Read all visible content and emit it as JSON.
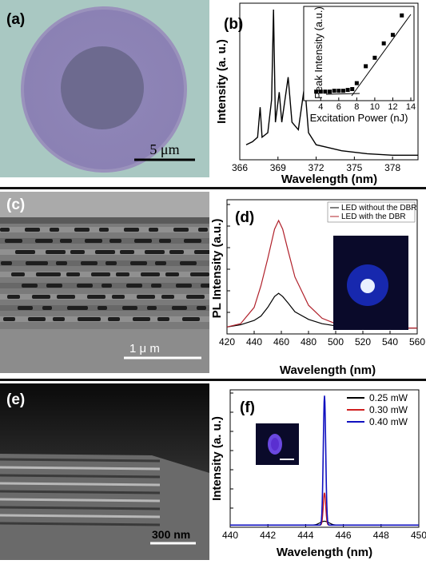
{
  "panels": {
    "a": {
      "label": "(a)",
      "scale_bar": "5 μm"
    },
    "b": {
      "label": "(b)"
    },
    "c": {
      "label": "(c)",
      "scale_bar": "1 μ m"
    },
    "d": {
      "label": "(d)"
    },
    "e": {
      "label": "(e)",
      "scale_bar": "300 nm"
    },
    "f": {
      "label": "(f)"
    }
  },
  "chart_data": [
    {
      "id": "b",
      "type": "line",
      "xlabel": "Wavelength (nm)",
      "ylabel": "Intensity (a. u.)",
      "xlim": [
        366,
        380
      ],
      "xticks": [
        366,
        369,
        372,
        375,
        378
      ],
      "series": [
        {
          "values": [
            [
              366.5,
              0.1
            ],
            [
              367,
              0.12
            ],
            [
              367.4,
              0.15
            ],
            [
              367.6,
              0.35
            ],
            [
              367.75,
              0.15
            ],
            [
              368.2,
              0.18
            ],
            [
              368.5,
              0.4
            ],
            [
              368.65,
              1.0
            ],
            [
              368.8,
              0.25
            ],
            [
              369.1,
              0.45
            ],
            [
              369.3,
              0.25
            ],
            [
              369.8,
              0.55
            ],
            [
              370.1,
              0.25
            ],
            [
              370.6,
              0.2
            ],
            [
              371.1,
              0.5
            ],
            [
              371.4,
              0.18
            ],
            [
              372,
              0.1
            ],
            [
              373,
              0.08
            ],
            [
              374,
              0.06
            ],
            [
              375,
              0.05
            ],
            [
              376,
              0.04
            ],
            [
              378,
              0.03
            ],
            [
              380,
              0.03
            ]
          ]
        }
      ],
      "inset": {
        "type": "scatter",
        "xlabel": "Excitation Power (nJ)",
        "ylabel": "Peak Intensity (a.u.)",
        "xticks": [
          4,
          6,
          8,
          10,
          12,
          14
        ],
        "x": [
          3.5,
          4,
          4.5,
          5,
          5.5,
          6,
          6.5,
          7,
          7.5,
          8,
          9,
          10,
          11,
          12,
          13
        ],
        "y": [
          0.05,
          0.05,
          0.05,
          0.05,
          0.06,
          0.06,
          0.06,
          0.07,
          0.08,
          0.15,
          0.35,
          0.45,
          0.62,
          0.72,
          0.95
        ]
      }
    },
    {
      "id": "d",
      "type": "line",
      "xlabel": "Wavelength (nm)",
      "ylabel": "PL Intensity (a.u.)",
      "xlim": [
        420,
        560
      ],
      "xticks": [
        420,
        440,
        460,
        480,
        500,
        520,
        540,
        560
      ],
      "legend": [
        "LED without the DBR",
        "LED with the DBR"
      ],
      "series": [
        {
          "name": "LED without the DBR",
          "color": "#000000",
          "x": [
            420,
            430,
            440,
            445,
            450,
            455,
            458,
            461,
            465,
            470,
            480,
            490,
            500,
            510,
            520,
            540,
            560
          ],
          "y": [
            0.02,
            0.04,
            0.08,
            0.12,
            0.2,
            0.3,
            0.33,
            0.3,
            0.24,
            0.16,
            0.09,
            0.05,
            0.03,
            0.02,
            0.01,
            0.01,
            0.01
          ]
        },
        {
          "name": "LED with the DBR",
          "color": "#b0202a",
          "x": [
            420,
            430,
            440,
            445,
            450,
            455,
            458,
            461,
            465,
            470,
            480,
            490,
            500,
            510,
            520,
            540,
            560
          ],
          "y": [
            0.02,
            0.05,
            0.2,
            0.4,
            0.65,
            0.92,
            1.0,
            0.92,
            0.72,
            0.48,
            0.22,
            0.1,
            0.05,
            0.03,
            0.02,
            0.01,
            0.01
          ]
        }
      ]
    },
    {
      "id": "f",
      "type": "line",
      "xlabel": "Wavelength (nm)",
      "ylabel": "Intensity (a. u.)",
      "xlim": [
        440,
        450
      ],
      "xticks": [
        440,
        442,
        444,
        446,
        448,
        450
      ],
      "legend": [
        "0.25 mW",
        "0.30 mW",
        "0.40 mW"
      ],
      "series": [
        {
          "name": "0.25 mW",
          "color": "#000000",
          "peak": 0.03
        },
        {
          "name": "0.30 mW",
          "color": "#d02020",
          "peak": 0.25
        },
        {
          "name": "0.40 mW",
          "color": "#1010c0",
          "peak": 1.0
        }
      ],
      "peak_center": 445.0
    }
  ]
}
